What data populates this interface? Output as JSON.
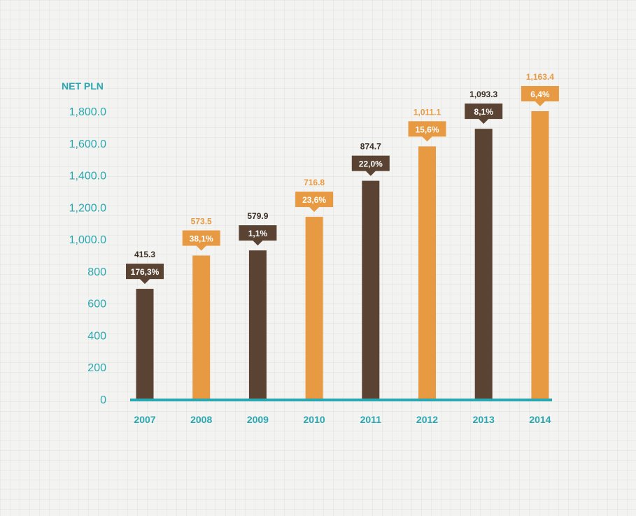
{
  "chart_data": {
    "type": "bar",
    "ylabel": "NET PLN",
    "ylim": [
      0,
      1800
    ],
    "yticks": [
      {
        "value": 0,
        "label": "0"
      },
      {
        "value": 200,
        "label": "200"
      },
      {
        "value": 400,
        "label": "400"
      },
      {
        "value": 600,
        "label": "600"
      },
      {
        "value": 800,
        "label": "800"
      },
      {
        "value": 1000,
        "label": "1,000.0"
      },
      {
        "value": 1200,
        "label": "1,200.0"
      },
      {
        "value": 1400,
        "label": "1,400.0"
      },
      {
        "value": 1600,
        "label": "1,600.0"
      },
      {
        "value": 1800,
        "label": "1,800.0"
      }
    ],
    "categories": [
      "2007",
      "2008",
      "2009",
      "2010",
      "2011",
      "2012",
      "2013",
      "2014"
    ],
    "bar_heights": [
      690,
      898,
      930,
      1140,
      1365,
      1580,
      1690,
      1800
    ],
    "values": [
      "415.3",
      "573.5",
      "579.9",
      "716.8",
      "874.7",
      "1,011.1",
      "1,093.3",
      "1,163.4"
    ],
    "growth": [
      "176,3%",
      "38,1%",
      "1,1%",
      "23,6%",
      "22,0%",
      "15,6%",
      "8,1%",
      "6,4%"
    ],
    "colors": {
      "dark": "#5a4332",
      "orange": "#e89a43",
      "axis": "#2aa7b0",
      "dark_value_text": "#3b2d24",
      "label_text": "#ffffff"
    },
    "bar_color_pattern": [
      "dark",
      "orange",
      "dark",
      "orange",
      "dark",
      "orange",
      "dark",
      "orange"
    ]
  }
}
